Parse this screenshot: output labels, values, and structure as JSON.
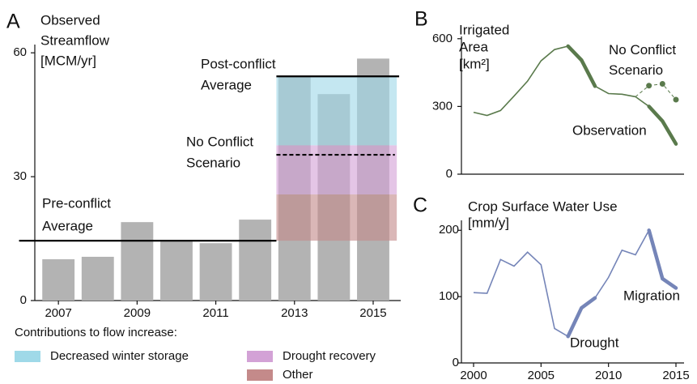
{
  "chart_data": [
    {
      "type": "bar",
      "label": "A",
      "ylabel": [
        "Observed",
        "Streamflow",
        "[MCM/yr]"
      ],
      "x": [
        2007,
        2008,
        2009,
        2010,
        2011,
        2012,
        2013,
        2014,
        2015
      ],
      "values": [
        10,
        10.6,
        19,
        14.7,
        13.9,
        19.6,
        54.3,
        50,
        58.6
      ],
      "color": "#b3b3b3",
      "xlim": [
        2006.4,
        2015.7
      ],
      "xticks": [
        2007,
        2009,
        2011,
        2013,
        2015
      ],
      "ylim": [
        0,
        62
      ],
      "yticks": [
        0,
        30,
        60
      ],
      "reference_lines": [
        {
          "label": [
            "Pre-conflict",
            "Average"
          ],
          "value": 14.5,
          "x_range": [
            2006.0,
            2012.54
          ],
          "style": "solid"
        },
        {
          "label": [
            "Post-conflict",
            "Average"
          ],
          "value": 54.3,
          "x_range": [
            2012.54,
            2015.66
          ],
          "style": "solid"
        },
        {
          "label": [
            "No Conflict",
            "Scenario"
          ],
          "value": 35.3,
          "x_range": [
            2012.54,
            2015.55
          ],
          "style": "dashed"
        }
      ],
      "legend_title": "Contributions to flow increase:",
      "contributions": {
        "x_range": [
          2012.54,
          2015.6
        ],
        "series": [
          {
            "name": "Decreased winter storage",
            "color": "#9fd9e8",
            "value": 16.7
          },
          {
            "name": "Drought recovery",
            "color": "#d3a2d6",
            "value": 11.9
          },
          {
            "name": "Other",
            "color": "#c48a8a",
            "value": 11.2
          }
        ]
      }
    },
    {
      "type": "line",
      "label": "B",
      "ylabel": [
        "Irrigated",
        "Area",
        "[km²]"
      ],
      "xlim": [
        1999.1,
        2015.6
      ],
      "ylim": [
        0,
        610
      ],
      "yticks": [
        0,
        300,
        600
      ],
      "highlight_ranges": [
        [
          2007,
          2009
        ],
        [
          2013,
          2015
        ]
      ],
      "series": [
        {
          "name": "Observation",
          "color": "#5a7a4c",
          "style": "solid",
          "x": [
            2000,
            2001,
            2002,
            2003,
            2004,
            2005,
            2006,
            2007,
            2008,
            2009,
            2010,
            2011,
            2012,
            2013,
            2014,
            2015
          ],
          "values": [
            274,
            260,
            282,
            346,
            412,
            502,
            552,
            567,
            505,
            390,
            357,
            354,
            343,
            300,
            235,
            134
          ]
        },
        {
          "name": "No Conflict Scenario",
          "color": "#5a7a4c",
          "style": "dotted",
          "x": [
            2012,
            2013,
            2014,
            2015
          ],
          "values": [
            343,
            392,
            400,
            330
          ]
        }
      ]
    },
    {
      "type": "line",
      "label": "C",
      "ylabel": [
        "Crop Surface Water Use",
        "[mm/y]"
      ],
      "xlim": [
        1999.1,
        2015.6
      ],
      "xticks": [
        2000,
        2005,
        2010,
        2015
      ],
      "ylim": [
        0,
        215
      ],
      "yticks": [
        0,
        100,
        200
      ],
      "highlight_ranges": [
        [
          2007,
          2009
        ],
        [
          2013,
          2015
        ]
      ],
      "annotations": [
        "Drought",
        "Migration"
      ],
      "series": [
        {
          "color": "#7585b8",
          "style": "solid",
          "x": [
            2000,
            2001,
            2002,
            2003,
            2004,
            2005,
            2006,
            2007,
            2008,
            2009,
            2010,
            2011,
            2012,
            2013,
            2014,
            2015
          ],
          "values": [
            106,
            105,
            156,
            146,
            167,
            148,
            52,
            40,
            83,
            98,
            129,
            170,
            163,
            200,
            127,
            113
          ]
        }
      ]
    }
  ]
}
